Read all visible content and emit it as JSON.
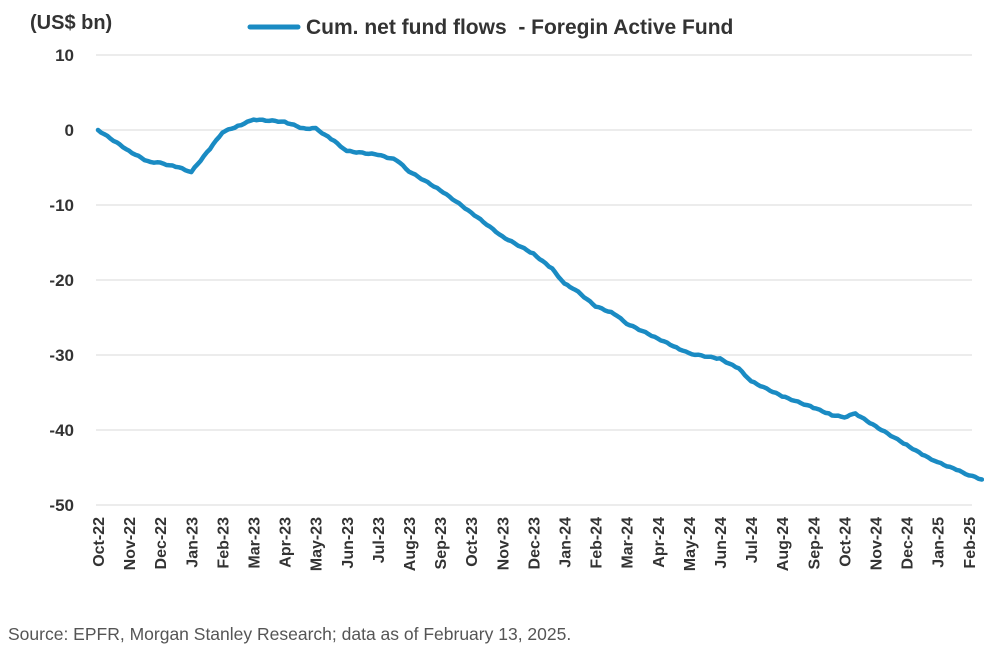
{
  "colors": {
    "series": "#1a8bc3",
    "grid": "#d9d9d9",
    "text": "#333333"
  },
  "source": "Source: EPFR, Morgan Stanley Research; data as of February 13, 2025.",
  "chart_data": {
    "type": "line",
    "unit_label": "(US$ bn)",
    "xlabel": "",
    "ylabel": "",
    "ylim": [
      -50,
      10
    ],
    "yticks": [
      10,
      0,
      -10,
      -20,
      -30,
      -40,
      -50
    ],
    "grid": true,
    "legend_position": "top-center",
    "x_tick_labels": [
      "Oct-22",
      "Nov-22",
      "Dec-22",
      "Jan-23",
      "Feb-23",
      "Mar-23",
      "Apr-23",
      "May-23",
      "Jun-23",
      "Jul-23",
      "Aug-23",
      "Sep-23",
      "Oct-23",
      "Nov-23",
      "Dec-23",
      "Jan-24",
      "Feb-24",
      "Mar-24",
      "Apr-24",
      "May-24",
      "Jun-24",
      "Jul-24",
      "Aug-24",
      "Sep-24",
      "Oct-24",
      "Nov-24",
      "Dec-24",
      "Jan-25",
      "Feb-25"
    ],
    "series": [
      {
        "name": "Cum. net fund flows  - Foregin Active Fund",
        "points": [
          [
            "Oct-22",
            0
          ],
          [
            "Nov-22",
            -2.8
          ],
          [
            "Nov-22 (late)",
            -4.2
          ],
          [
            "Dec-22",
            -4.4
          ],
          [
            "Dec-22 (late)",
            -5.0
          ],
          [
            "Jan-23",
            -5.6
          ],
          [
            "Jan-23 (late)",
            -2.5
          ],
          [
            "Feb-23",
            -0.3
          ],
          [
            "Feb-23 (late)",
            0.7
          ],
          [
            "Mar-23",
            1.4
          ],
          [
            "Apr-23",
            1.1
          ],
          [
            "Apr-23 (late)",
            0.2
          ],
          [
            "May-23",
            0.2
          ],
          [
            "May-23 (late)",
            -1.5
          ],
          [
            "Jun-23",
            -2.8
          ],
          [
            "Jul-23",
            -3.3
          ],
          [
            "Jul-23 (late)",
            -4.0
          ],
          [
            "Aug-23",
            -5.5
          ],
          [
            "Sep-23",
            -8.0
          ],
          [
            "Oct-23",
            -11.0
          ],
          [
            "Nov-23",
            -14.2
          ],
          [
            "Dec-23",
            -16.5
          ],
          [
            "Dec-23 (late)",
            -18.5
          ],
          [
            "Jan-24",
            -20.5
          ],
          [
            "Jan-24 (mid)",
            -21.3
          ],
          [
            "Feb-24",
            -23.5
          ],
          [
            "Feb-24 (late)",
            -24.5
          ],
          [
            "Mar-24",
            -25.8
          ],
          [
            "Apr-24",
            -27.8
          ],
          [
            "Apr-24 (late)",
            -29.0
          ],
          [
            "May-24",
            -29.8
          ],
          [
            "Jun-24",
            -30.5
          ],
          [
            "Jun-24 (late)",
            -31.8
          ],
          [
            "Jul-24",
            -33.5
          ],
          [
            "Aug-24",
            -35.5
          ],
          [
            "Sep-24",
            -37.0
          ],
          [
            "Sep-24 (late)",
            -38.0
          ],
          [
            "Oct-24",
            -38.3
          ],
          [
            "Oct-24 (mid)",
            -37.8
          ],
          [
            "Nov-24",
            -39.5
          ],
          [
            "Dec-24",
            -42.0
          ],
          [
            "Dec-24 (late)",
            -43.5
          ],
          [
            "Jan-25",
            -44.3
          ],
          [
            "Jan-25 (late)",
            -45.3
          ],
          [
            "Feb-25",
            -46.0
          ],
          [
            "Feb-25 (13th)",
            -46.6
          ]
        ]
      }
    ]
  }
}
